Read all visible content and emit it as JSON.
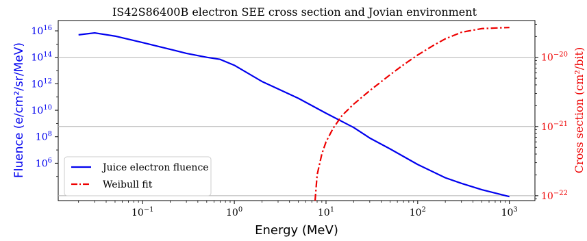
{
  "chart_data": {
    "type": "line",
    "title": "IS42S86400B electron SEE cross section and Jovian environment",
    "xlabel": "Energy (MeV)",
    "ylabel_left": "Fluence (e/cm²/sr/MeV)",
    "ylabel_right": "Cross section (cm²/bit)",
    "x_scale": "log",
    "y_left_scale": "log",
    "y_right_scale": "log",
    "xlim": [
      0.012,
      1900
    ],
    "ylim_left": [
      1500.0,
      6e+16
    ],
    "ylim_right": [
      8.5e-23,
      3.4e-20
    ],
    "x_ticks": [
      {
        "value": 0.1,
        "base": "10",
        "exp": "−1"
      },
      {
        "value": 1,
        "base": "10",
        "exp": "0"
      },
      {
        "value": 10,
        "base": "10",
        "exp": "1"
      },
      {
        "value": 100,
        "base": "10",
        "exp": "2"
      },
      {
        "value": 1000,
        "base": "10",
        "exp": "3"
      }
    ],
    "y_left_ticks": [
      {
        "value": 1000000.0,
        "base": "10",
        "exp": "6"
      },
      {
        "value": 100000000.0,
        "base": "10",
        "exp": "8"
      },
      {
        "value": 10000000000.0,
        "base": "10",
        "exp": "10"
      },
      {
        "value": 1000000000000.0,
        "base": "10",
        "exp": "12"
      },
      {
        "value": 100000000000000.0,
        "base": "10",
        "exp": "14"
      },
      {
        "value": 1e+16,
        "base": "10",
        "exp": "16"
      }
    ],
    "y_right_ticks": [
      {
        "value": 1e-22,
        "base": "10",
        "exp": "−22"
      },
      {
        "value": 1e-21,
        "base": "10",
        "exp": "−21"
      },
      {
        "value": 1e-20,
        "base": "10",
        "exp": "−20"
      }
    ],
    "grid": "horizontal (right axis)",
    "legend_position": "lower-left",
    "series": [
      {
        "name": "Juice electron fluence",
        "axis": "left",
        "color": "#0000ee",
        "style": "solid",
        "x": [
          0.02,
          0.03,
          0.05,
          0.1,
          0.2,
          0.3,
          0.5,
          0.7,
          1,
          2,
          5,
          10,
          20,
          30,
          50,
          100,
          200,
          300,
          500,
          1000
        ],
        "y": [
          5000000000000000.0,
          7000000000000000.0,
          4000000000000000.0,
          1300000000000000.0,
          400000000000000.0,
          200000000000000.0,
          100000000000000.0,
          70000000000000.0,
          25000000000000.0,
          1500000000000.0,
          80000000000.0,
          6000000000.0,
          500000000.0,
          80000000.0,
          12000000.0,
          800000.0,
          80000.0,
          30000.0,
          10000.0,
          3000.0
        ]
      },
      {
        "name": "Weibull fit",
        "axis": "right",
        "color": "#ee0000",
        "style": "dash-dot",
        "x": [
          7.6,
          8,
          9,
          10,
          12,
          15,
          20,
          30,
          50,
          70,
          100,
          150,
          200,
          300,
          500,
          700,
          1000
        ],
        "y": [
          8.5e-23,
          2e-22,
          4e-22,
          6e-22,
          9.5e-22,
          1.45e-21,
          2.1e-21,
          3.3e-21,
          5.6e-21,
          7.8e-21,
          1.08e-20,
          1.5e-20,
          1.85e-20,
          2.3e-20,
          2.6e-20,
          2.65e-20,
          2.7e-20
        ]
      }
    ]
  }
}
